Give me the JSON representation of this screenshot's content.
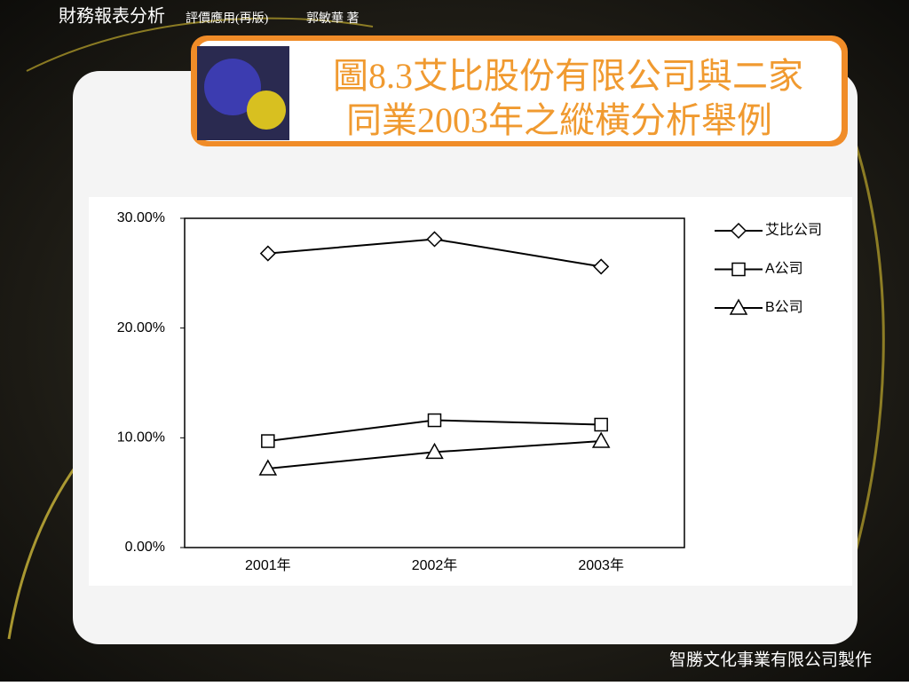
{
  "header": {
    "book": "財務報表分析",
    "subtitle": "評價應用(再版)",
    "author": "郭敏華 著"
  },
  "footer": "智勝文化事業有限公司製作",
  "chart_data": {
    "type": "line",
    "title": [
      "圖8.3艾比股份有限公司與二家",
      "同業2003年之縱橫分析舉例"
    ],
    "categories": [
      "2001年",
      "2002年",
      "2003年"
    ],
    "series": [
      {
        "name": "艾比公司",
        "color": "#000000",
        "marker": "diamond",
        "values": [
          26.8,
          28.1,
          25.6
        ]
      },
      {
        "name": "A公司",
        "color": "#000000",
        "marker": "square",
        "values": [
          9.7,
          11.6,
          11.2
        ]
      },
      {
        "name": "B公司",
        "color": "#000000",
        "marker": "triangle",
        "values": [
          7.2,
          8.7,
          9.7
        ]
      }
    ],
    "ylim": [
      0,
      30
    ],
    "yticks": [
      {
        "value": 0,
        "label": "0.00%"
      },
      {
        "value": 10,
        "label": "10.00%"
      },
      {
        "value": 20,
        "label": "20.00%"
      },
      {
        "value": 30,
        "label": "30.00%"
      }
    ],
    "grid": false,
    "legend": "right"
  }
}
